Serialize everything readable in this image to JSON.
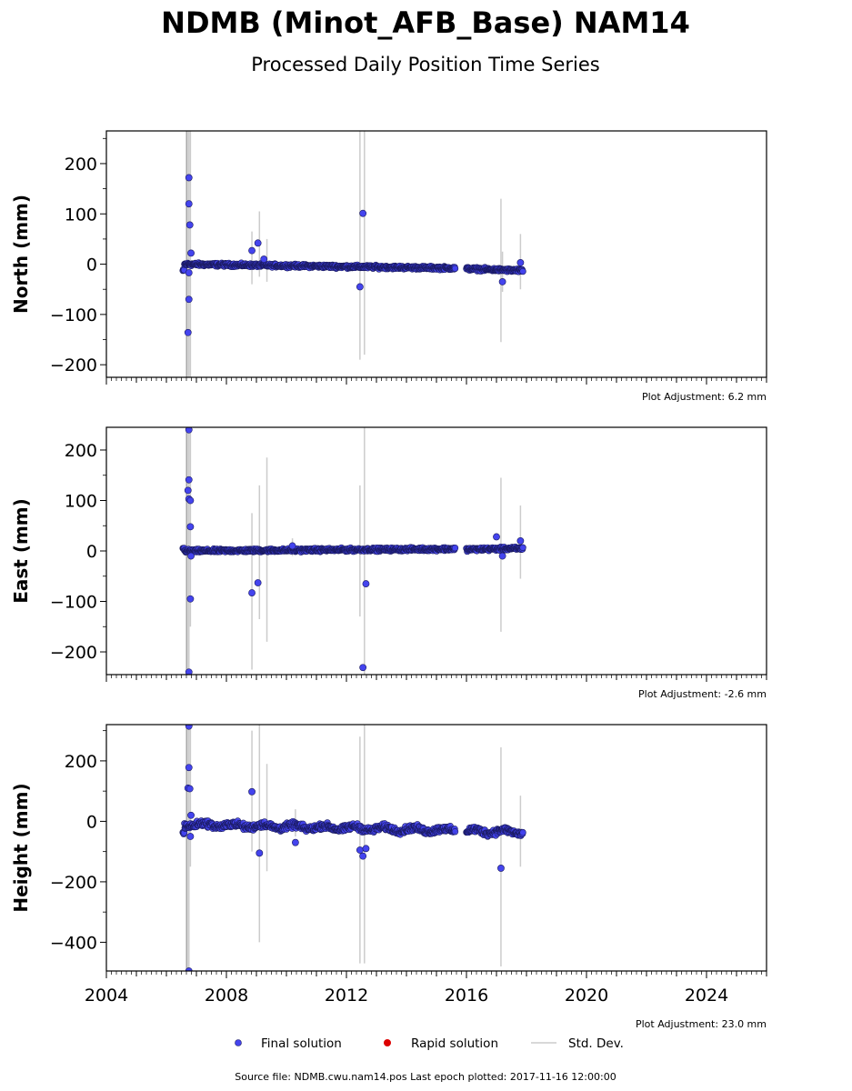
{
  "title": "NDMB (Minot_AFB_Base) NAM14",
  "subtitle": "Processed Daily Position Time Series",
  "footer": "Source file: NDMB.cwu.nam14.pos  Last epoch plotted: 2017-11-16 12:00:00",
  "legend": {
    "final": "Final solution",
    "rapid": "Rapid solution",
    "std": "Std. Dev."
  },
  "colors": {
    "final": "#4444ee",
    "final_edge": "#1a1a60",
    "rapid": "#dd0000",
    "std": "#cccccc"
  },
  "x_ticks": [
    "2004",
    "2008",
    "2012",
    "2016",
    "2020",
    "2024"
  ],
  "chart_data": [
    {
      "type": "scatter",
      "ylabel": "North (mm)",
      "adjustment": "Plot Adjustment: 6.2 mm",
      "xlim": [
        2004.0,
        2026.0
      ],
      "ylim": [
        -225,
        265
      ],
      "yticks": [
        200,
        100,
        0,
        -100,
        -200
      ],
      "ytick_labels": [
        "200",
        "100",
        "0",
        "−100",
        "−200"
      ],
      "trend": [
        [
          2006.6,
          0
        ],
        [
          2015.6,
          -8
        ],
        [
          2016.0,
          -9
        ],
        [
          2017.9,
          -13
        ]
      ],
      "outliers": [
        [
          2006.75,
          172
        ],
        [
          2006.75,
          120
        ],
        [
          2006.78,
          78
        ],
        [
          2006.82,
          22
        ],
        [
          2006.75,
          -17
        ],
        [
          2006.75,
          -70
        ],
        [
          2006.72,
          -136
        ],
        [
          2008.85,
          27
        ],
        [
          2009.05,
          42
        ],
        [
          2009.25,
          10
        ],
        [
          2012.45,
          -45
        ],
        [
          2012.55,
          101
        ],
        [
          2017.2,
          -35
        ],
        [
          2017.8,
          3
        ]
      ],
      "stddev": [
        [
          2006.75,
          -225,
          265
        ],
        [
          2006.8,
          -225,
          265
        ],
        [
          2008.85,
          -40,
          65
        ],
        [
          2009.1,
          -25,
          105
        ],
        [
          2009.35,
          -35,
          50
        ],
        [
          2012.45,
          -190,
          265
        ],
        [
          2012.6,
          -180,
          265
        ],
        [
          2017.15,
          -155,
          130
        ],
        [
          2017.2,
          -55,
          25
        ],
        [
          2017.8,
          -50,
          60
        ]
      ]
    },
    {
      "type": "scatter",
      "ylabel": "East (mm)",
      "adjustment": "Plot Adjustment: -2.6 mm",
      "xlim": [
        2004.0,
        2026.0
      ],
      "ylim": [
        -245,
        245
      ],
      "yticks": [
        200,
        100,
        0,
        -100,
        -200
      ],
      "ytick_labels": [
        "200",
        "100",
        "0",
        "−100",
        "−200"
      ],
      "trend": [
        [
          2006.6,
          0
        ],
        [
          2015.6,
          4
        ],
        [
          2016.0,
          3
        ],
        [
          2017.9,
          5
        ]
      ],
      "outliers": [
        [
          2006.75,
          240
        ],
        [
          2006.75,
          141
        ],
        [
          2006.72,
          120
        ],
        [
          2006.75,
          103
        ],
        [
          2006.8,
          100
        ],
        [
          2006.8,
          48
        ],
        [
          2006.82,
          -10
        ],
        [
          2006.8,
          -95
        ],
        [
          2006.75,
          -240
        ],
        [
          2008.85,
          -83
        ],
        [
          2009.05,
          -63
        ],
        [
          2010.2,
          10
        ],
        [
          2012.55,
          -231
        ],
        [
          2012.65,
          -65
        ],
        [
          2017.0,
          28
        ],
        [
          2017.2,
          -10
        ],
        [
          2017.8,
          20
        ]
      ],
      "stddev": [
        [
          2006.75,
          -245,
          245
        ],
        [
          2006.8,
          -150,
          245
        ],
        [
          2008.85,
          -235,
          75
        ],
        [
          2009.1,
          -135,
          130
        ],
        [
          2009.35,
          -180,
          185
        ],
        [
          2010.2,
          -10,
          25
        ],
        [
          2012.45,
          -130,
          130
        ],
        [
          2012.6,
          -245,
          245
        ],
        [
          2017.15,
          -160,
          145
        ],
        [
          2017.8,
          -55,
          90
        ]
      ]
    },
    {
      "type": "scatter",
      "ylabel": "Height (mm)",
      "adjustment": "Plot Adjustment: 23.0 mm",
      "xlim": [
        2004.0,
        2026.0
      ],
      "ylim": [
        -495,
        320
      ],
      "yticks": [
        200,
        0,
        -200,
        -400
      ],
      "ytick_labels": [
        "200",
        "0",
        "−200",
        "−400"
      ],
      "trend": [
        [
          2006.6,
          -10
        ],
        [
          2015.6,
          -30
        ],
        [
          2016.0,
          -32
        ],
        [
          2017.9,
          -35
        ]
      ],
      "outliers": [
        [
          2006.75,
          315
        ],
        [
          2006.75,
          178
        ],
        [
          2006.72,
          110
        ],
        [
          2006.78,
          108
        ],
        [
          2006.82,
          20
        ],
        [
          2006.8,
          -50
        ],
        [
          2006.75,
          -495
        ],
        [
          2008.85,
          98
        ],
        [
          2009.1,
          -105
        ],
        [
          2010.3,
          -70
        ],
        [
          2012.45,
          -95
        ],
        [
          2012.55,
          -115
        ],
        [
          2012.65,
          -90
        ],
        [
          2017.15,
          -155
        ]
      ],
      "stddev": [
        [
          2006.75,
          -495,
          320
        ],
        [
          2006.8,
          -150,
          320
        ],
        [
          2008.85,
          -100,
          300
        ],
        [
          2009.1,
          -400,
          320
        ],
        [
          2009.35,
          -165,
          190
        ],
        [
          2010.3,
          -50,
          40
        ],
        [
          2012.45,
          -470,
          280
        ],
        [
          2012.6,
          -470,
          320
        ],
        [
          2017.15,
          -480,
          245
        ],
        [
          2017.8,
          -150,
          85
        ]
      ]
    }
  ]
}
